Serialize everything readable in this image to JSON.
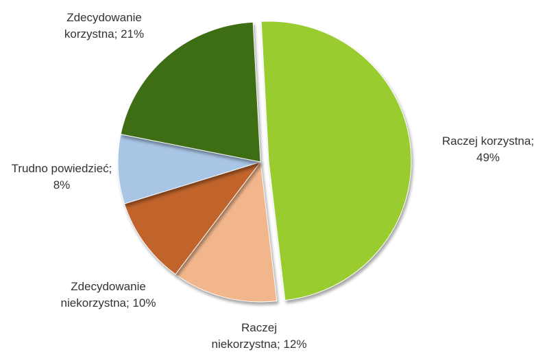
{
  "chart_data": {
    "type": "pie",
    "values": [
      49,
      12,
      10,
      8,
      21
    ],
    "value_labels": [
      "Raczej korzystna; 49%",
      "Raczej niekorzystna; 12%",
      "Zdecydowanie niekorzystna; 10%",
      "Trudno powiedzieć; 8%",
      "Zdecydowanie korzystna; 21%"
    ],
    "colors": [
      "#99cc2e",
      "#f2b68c",
      "#c0642c",
      "#a9c5e6",
      "#3e6e14"
    ]
  }
}
